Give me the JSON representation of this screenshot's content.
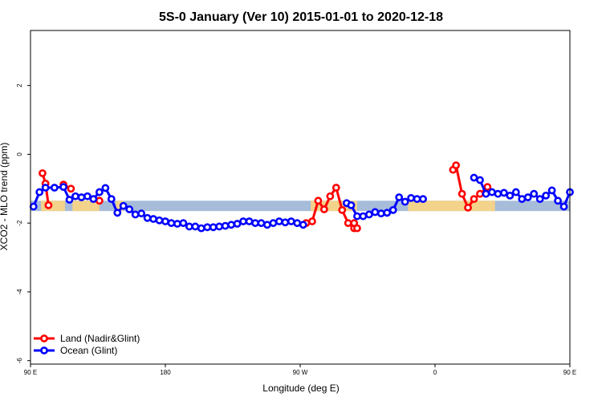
{
  "chart_data": {
    "type": "line",
    "title": "5S-0 January (Ver 10)   2015-01-01 to 2020-12-18",
    "xlabel": "Longitude (deg E)",
    "ylabel": "XCO2 - MLO trend (ppm)",
    "xlim": [
      90,
      450
    ],
    "ylim": [
      -6.1,
      3.6
    ],
    "x_ticks": [
      {
        "value": 90,
        "label": "90 E"
      },
      {
        "value": 180,
        "label": "180"
      },
      {
        "value": 270,
        "label": "90 W"
      },
      {
        "value": 360,
        "label": "0"
      },
      {
        "value": 450,
        "label": "90 E"
      },
      {
        "value": 540,
        "label": "180"
      }
    ],
    "y_ticks": [
      {
        "value": 2,
        "label": "2"
      },
      {
        "value": 0,
        "label": "0"
      },
      {
        "value": -2,
        "label": "-2"
      },
      {
        "value": -4,
        "label": "-4"
      },
      {
        "value": -6,
        "label": "-6"
      }
    ],
    "grid": false,
    "legend_position": "bottom-left",
    "land_band": {
      "ymin": -1.65,
      "ymax": -1.35,
      "ocean_color": "#a6bcd9",
      "land_color": "#f3d28a",
      "land_ranges": [
        [
          97,
          113
        ],
        [
          118,
          130
        ],
        [
          130,
          136
        ],
        [
          147,
          152
        ],
        [
          277,
          308
        ],
        [
          342,
          400
        ],
        [
          455,
          465
        ],
        [
          482,
          500
        ]
      ]
    },
    "series": [
      {
        "name": "Land (Nadir&Glint)",
        "color": "#ff0000",
        "segments": [
          {
            "x": [
              98,
              100,
              102
            ],
            "y": [
              -0.55,
              -0.85,
              -1.48
            ]
          },
          {
            "x": [
              112,
              117
            ],
            "y": [
              -0.88,
              -1.0
            ]
          },
          {
            "x": [
              136
            ],
            "y": [
              -1.35
            ]
          },
          {
            "x": [
              274,
              278,
              282,
              286,
              290,
              294,
              298,
              302,
              306
            ],
            "y": [
              -2.0,
              -1.95,
              -1.35,
              -1.6,
              -1.22,
              -0.97,
              -1.62,
              -2.0,
              -2.15
            ]
          },
          {
            "x": [
              306,
              308
            ],
            "y": [
              -2.0,
              -2.15
            ]
          },
          {
            "x": [
              372,
              374,
              378,
              382,
              386,
              390,
              395
            ],
            "y": [
              -0.45,
              -0.32,
              -1.15,
              -1.55,
              -1.3,
              -1.15,
              -0.95
            ]
          },
          {
            "x": [
              472,
              474
            ],
            "y": [
              -0.58,
              -1.48
            ]
          },
          {
            "x": [
              484,
              488
            ],
            "y": [
              -0.88,
              -1.0
            ]
          }
        ]
      },
      {
        "name": "Ocean (Glint)",
        "color": "#0000ff",
        "segments": [
          {
            "x": [
              92,
              96,
              100,
              106,
              112,
              116,
              120,
              124,
              128,
              132,
              136,
              140,
              144,
              148,
              152,
              156,
              160,
              164,
              168,
              172,
              176,
              180,
              184,
              188,
              192,
              196,
              200,
              204,
              208,
              212,
              216,
              220,
              224,
              228,
              232,
              236,
              240,
              244,
              248,
              252,
              256,
              260,
              264,
              268,
              272
            ],
            "y": [
              -1.52,
              -1.1,
              -0.97,
              -0.97,
              -0.95,
              -1.32,
              -1.22,
              -1.25,
              -1.22,
              -1.3,
              -1.1,
              -0.98,
              -1.3,
              -1.7,
              -1.5,
              -1.6,
              -1.75,
              -1.72,
              -1.85,
              -1.88,
              -1.92,
              -1.95,
              -2.0,
              -2.02,
              -2.0,
              -2.1,
              -2.1,
              -2.15,
              -2.12,
              -2.12,
              -2.1,
              -2.08,
              -2.05,
              -2.02,
              -1.95,
              -1.95,
              -2.0,
              -2.0,
              -2.05,
              -2.0,
              -1.95,
              -1.98,
              -1.95,
              -2.0,
              -2.05
            ]
          },
          {
            "x": [
              301,
              304,
              308,
              312,
              316,
              320,
              324,
              328,
              332,
              336,
              340,
              344,
              348,
              352
            ],
            "y": [
              -1.42,
              -1.48,
              -1.8,
              -1.8,
              -1.75,
              -1.68,
              -1.72,
              -1.7,
              -1.62,
              -1.25,
              -1.38,
              -1.27,
              -1.3,
              -1.3
            ]
          },
          {
            "x": [
              386,
              390,
              394,
              398,
              402,
              406,
              410,
              414,
              418,
              422,
              426,
              430,
              434,
              438,
              442,
              446,
              450,
              454,
              458,
              462,
              466,
              470,
              474,
              478,
              482,
              486,
              490,
              494,
              498,
              502,
              506,
              510,
              514,
              518,
              522,
              526,
              530,
              534,
              538
            ],
            "y": [
              -0.68,
              -0.75,
              -1.15,
              -1.1,
              -1.15,
              -1.12,
              -1.2,
              -1.1,
              -1.3,
              -1.25,
              -1.15,
              -1.3,
              -1.2,
              -1.05,
              -1.35,
              -1.52,
              -1.1,
              -0.93,
              -0.95,
              -0.93,
              -1.3,
              -1.2,
              -1.25,
              -1.18,
              -1.35,
              -1.12,
              -1.0,
              -1.28,
              -1.7,
              -1.55,
              -1.6,
              -1.78,
              -1.75,
              -1.72,
              -1.7,
              -1.75,
              -1.78,
              -1.7,
              -1.75
            ]
          }
        ]
      }
    ]
  }
}
